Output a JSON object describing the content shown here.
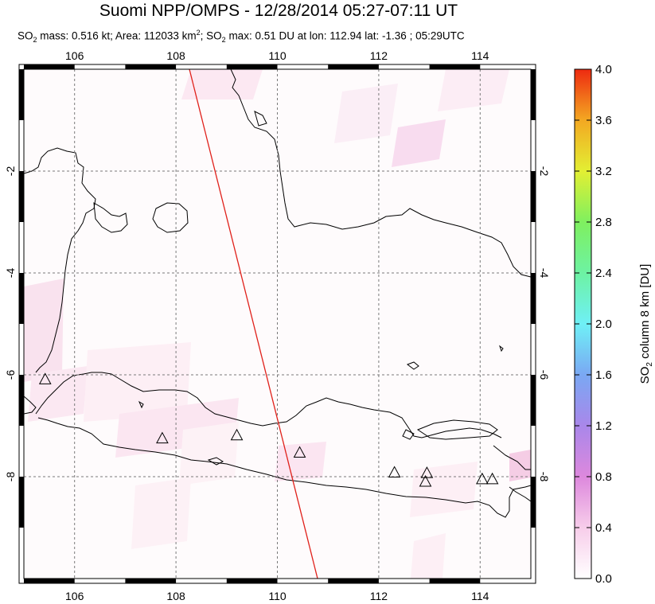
{
  "header": {
    "title": "Suomi NPP/OMPS - 12/28/2014 05:27-07:11 UT",
    "subtitle_parts": [
      "SO",
      "2",
      " mass: 0.516 kt; Area: 112033 km",
      "2",
      "; SO",
      "2",
      " max: 0.51 DU at lon: 112.94 lat: -1.36 ; 05:29UTC"
    ]
  },
  "map": {
    "lon_range": [
      105,
      115
    ],
    "lat_range": [
      -10,
      0
    ],
    "lon_ticks": [
      "106",
      "108",
      "110",
      "112",
      "114"
    ],
    "lat_ticks": [
      "-2",
      "-4",
      "-6",
      "-8"
    ],
    "orbit_track_color": "#e0201a",
    "volcano_marker": "triangle",
    "volcanoes": [
      {
        "lon": 105.42,
        "lat": -6.1
      },
      {
        "lon": 107.73,
        "lat": -7.26
      },
      {
        "lon": 109.2,
        "lat": -7.2
      },
      {
        "lon": 110.44,
        "lat": -7.54
      },
      {
        "lon": 112.31,
        "lat": -7.93
      },
      {
        "lon": 112.95,
        "lat": -7.94
      },
      {
        "lon": 112.92,
        "lat": -8.11
      },
      {
        "lon": 114.04,
        "lat": -8.06
      },
      {
        "lon": 114.24,
        "lat": -8.06
      }
    ]
  },
  "colorbar": {
    "label_main": "SO",
    "label_sub": "2",
    "label_rest": " column 8 km [DU]",
    "ticks": [
      "4.0",
      "3.6",
      "3.2",
      "2.8",
      "2.4",
      "2.0",
      "1.6",
      "1.2",
      "0.8",
      "0.4",
      "0.0"
    ],
    "colors": [
      "#ffffff",
      "#f7cdea",
      "#dd88dd",
      "#a987ea",
      "#7aa8f3",
      "#6ff0f6",
      "#6df2a3",
      "#7ff05f",
      "#e3ef33",
      "#f3a822",
      "#ee2a10"
    ]
  }
}
